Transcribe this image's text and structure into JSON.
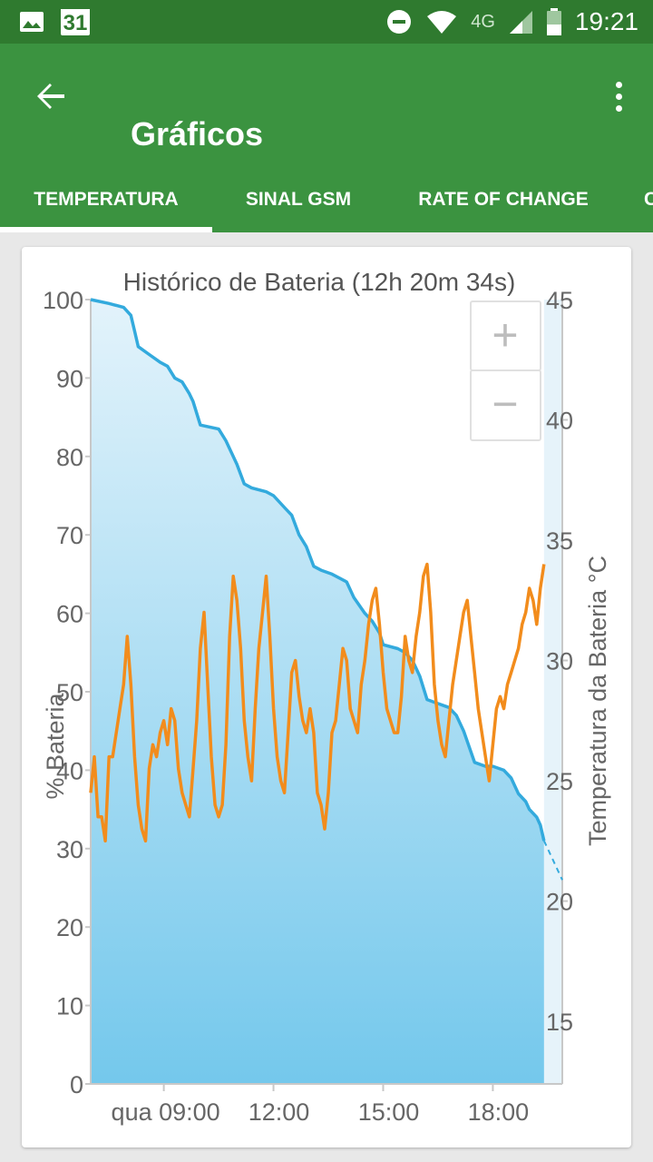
{
  "status_bar": {
    "time": "19:21",
    "network": "4G",
    "calendar_day": "31",
    "icons": [
      "image-icon",
      "calendar-icon",
      "do-not-disturb-icon",
      "wifi-icon",
      "signal-icon",
      "battery-icon"
    ]
  },
  "app_bar": {
    "title": "Gráficos",
    "back_icon": "arrow-back-icon",
    "menu_icon": "more-vert-icon",
    "color": "#3b9340",
    "status_color": "#2f7a2f"
  },
  "tabs": [
    {
      "label": "TEMPERATURA",
      "selected": true
    },
    {
      "label": "SINAL GSM",
      "selected": false
    },
    {
      "label": "RATE OF CHANGE",
      "selected": false
    },
    {
      "label": "C",
      "selected": false
    }
  ],
  "zoom": {
    "in_label": "+",
    "out_label": "−"
  },
  "chart_data": {
    "type": "area",
    "title": "Histórico de Bateria (12h 20m 34s)",
    "ylabel": "% Bateria",
    "y2label": "Temperatura da Bateria °C",
    "ylim": [
      0,
      100
    ],
    "y2lim": [
      12.4,
      45
    ],
    "xlim": [
      7.0,
      19.9
    ],
    "x_ticks": [
      "qua 09:00",
      "12:00",
      "15:00",
      "18:00"
    ],
    "x_tick_values": [
      9,
      12,
      15,
      18
    ],
    "y_ticks": [
      "0",
      "10",
      "20",
      "30",
      "40",
      "50",
      "60",
      "70",
      "80",
      "90",
      "100"
    ],
    "y2_ticks": [
      "15",
      "20",
      "25",
      "30",
      "35",
      "40",
      "45"
    ],
    "y2_tick_values": [
      15,
      20,
      25,
      30,
      35,
      40,
      45
    ],
    "colors": {
      "battery": "#33aadd",
      "temperature": "#f28c1c",
      "fill_top": "#e3f3fb",
      "fill_bottom": "#74c8ec",
      "projection_fill": "#e6f3fa"
    },
    "battery": {
      "x": [
        7.0,
        7.5,
        7.9,
        8.1,
        8.2,
        8.3,
        8.6,
        8.9,
        9.1,
        9.3,
        9.5,
        9.7,
        9.8,
        10.0,
        10.5,
        10.7,
        11.0,
        11.2,
        11.4,
        11.8,
        12.0,
        12.3,
        12.5,
        12.7,
        12.9,
        13.1,
        13.3,
        13.6,
        14.0,
        14.2,
        14.5,
        14.7,
        14.9,
        15.0,
        15.4,
        15.6,
        15.8,
        16.0,
        16.2,
        16.5,
        16.8,
        17.0,
        17.2,
        17.5,
        17.8,
        18.0,
        18.3,
        18.5,
        18.7,
        18.9,
        19.0,
        19.2,
        19.3,
        19.4
      ],
      "y": [
        100,
        99.5,
        99,
        98,
        96,
        94,
        93,
        92,
        91.5,
        90,
        89.5,
        88,
        87,
        84,
        83.5,
        82,
        79,
        76.5,
        76,
        75.5,
        75,
        73.5,
        72.5,
        70,
        68.5,
        66,
        65.5,
        65,
        64,
        62,
        60,
        59,
        57.5,
        56,
        55.5,
        55,
        54,
        52,
        49,
        48.5,
        48,
        47,
        45,
        41,
        40.5,
        40.5,
        40,
        39,
        37,
        36,
        35,
        34,
        33,
        31
      ]
    },
    "battery_projection": {
      "x": [
        19.4,
        19.9
      ],
      "y": [
        31,
        26
      ]
    },
    "temperature": {
      "x": [
        7.0,
        7.1,
        7.2,
        7.3,
        7.4,
        7.5,
        7.6,
        7.7,
        7.8,
        7.9,
        8.0,
        8.1,
        8.2,
        8.3,
        8.4,
        8.5,
        8.6,
        8.7,
        8.8,
        8.9,
        9.0,
        9.1,
        9.2,
        9.3,
        9.4,
        9.5,
        9.6,
        9.7,
        9.8,
        9.9,
        10.0,
        10.1,
        10.2,
        10.3,
        10.4,
        10.5,
        10.6,
        10.7,
        10.8,
        10.9,
        11.0,
        11.1,
        11.2,
        11.3,
        11.4,
        11.5,
        11.6,
        11.7,
        11.8,
        11.9,
        12.0,
        12.1,
        12.2,
        12.3,
        12.4,
        12.5,
        12.6,
        12.7,
        12.8,
        12.9,
        13.0,
        13.1,
        13.2,
        13.3,
        13.4,
        13.5,
        13.6,
        13.7,
        13.8,
        13.9,
        14.0,
        14.1,
        14.2,
        14.3,
        14.4,
        14.5,
        14.6,
        14.7,
        14.8,
        14.9,
        15.0,
        15.1,
        15.2,
        15.3,
        15.4,
        15.5,
        15.6,
        15.7,
        15.8,
        15.9,
        16.0,
        16.1,
        16.2,
        16.3,
        16.4,
        16.5,
        16.6,
        16.7,
        16.8,
        16.9,
        17.0,
        17.1,
        17.2,
        17.3,
        17.4,
        17.5,
        17.6,
        17.7,
        17.8,
        17.9,
        18.0,
        18.1,
        18.2,
        18.3,
        18.4,
        18.5,
        18.6,
        18.7,
        18.8,
        18.9,
        19.0,
        19.1,
        19.2,
        19.3,
        19.4
      ],
      "y": [
        24.5,
        26,
        23.5,
        23.5,
        22.5,
        26,
        26,
        27,
        28,
        29,
        31,
        29,
        26,
        24,
        23,
        22.5,
        25.5,
        26.5,
        26,
        27,
        27.5,
        26.5,
        28,
        27.5,
        25.5,
        24.5,
        24,
        23.5,
        25.5,
        27.5,
        30.5,
        32,
        29,
        26,
        24,
        23.5,
        24,
        26.5,
        31,
        33.5,
        32.5,
        30.5,
        27.5,
        26,
        25,
        28,
        30.5,
        32,
        33.5,
        31,
        28,
        26,
        25,
        24.5,
        27,
        29.5,
        30,
        28.5,
        27.5,
        27,
        28,
        27,
        24.5,
        24,
        23,
        24.5,
        27,
        27.5,
        29,
        30.5,
        30,
        28,
        27.5,
        27,
        29,
        30,
        31.5,
        32.5,
        33,
        31.5,
        29.5,
        28,
        27.5,
        27,
        27,
        28.5,
        31,
        30,
        29.5,
        31,
        32,
        33.5,
        34,
        32,
        29,
        27.5,
        26.5,
        26,
        27.5,
        29,
        30,
        31,
        32,
        32.5,
        31,
        29.5,
        28,
        27,
        26,
        25,
        26.5,
        28,
        28.5,
        28,
        29,
        29.5,
        30,
        30.5,
        31.5,
        32,
        33,
        32.5,
        31.5,
        33,
        34
      ]
    }
  }
}
